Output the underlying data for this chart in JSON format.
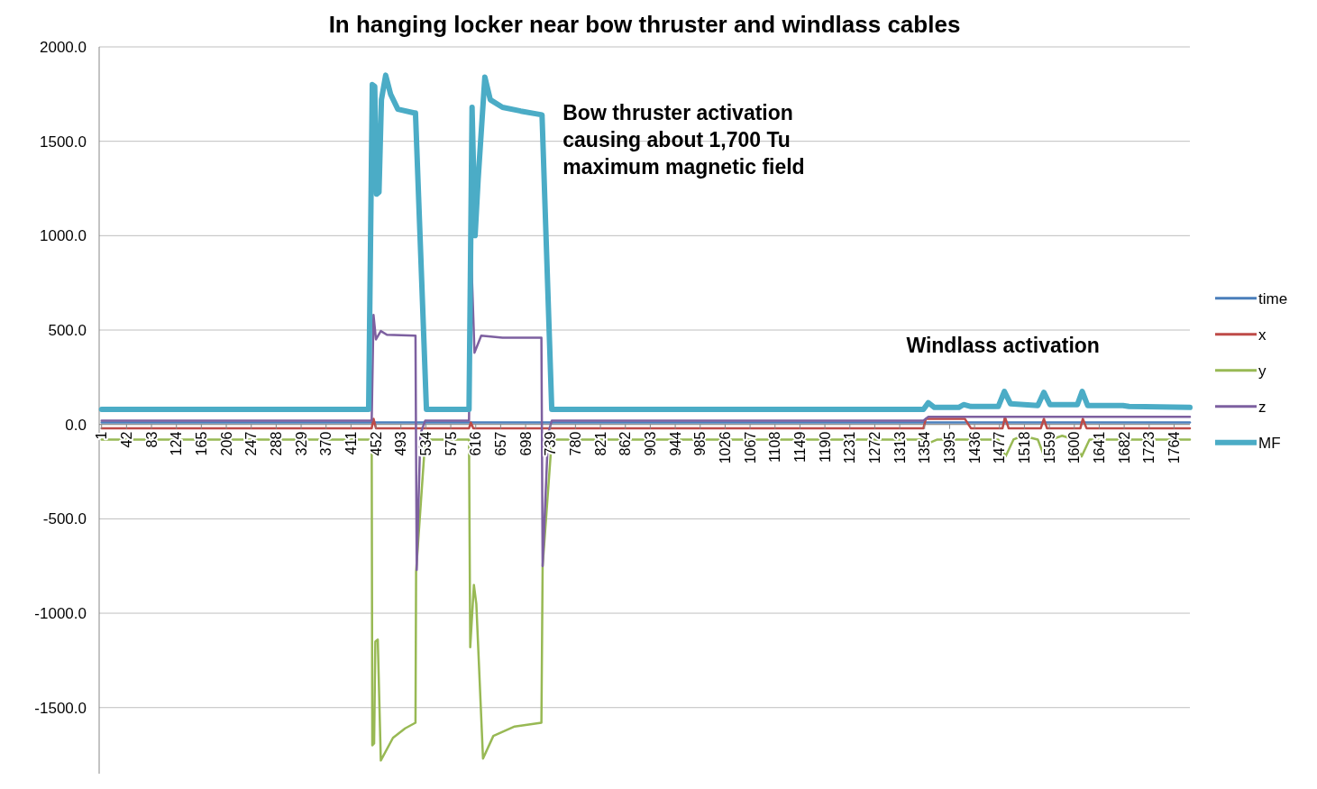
{
  "chart_data": {
    "type": "line",
    "title": "In hanging locker near bow thruster and windlass cables",
    "xlim": [
      -3,
      1790
    ],
    "ylim": [
      -1850,
      2000
    ],
    "xticks": [
      1,
      42,
      83,
      124,
      165,
      206,
      247,
      288,
      329,
      370,
      411,
      452,
      493,
      534,
      575,
      616,
      657,
      698,
      739,
      780,
      821,
      862,
      903,
      944,
      985,
      1026,
      1067,
      1108,
      1149,
      1190,
      1231,
      1272,
      1313,
      1354,
      1395,
      1436,
      1477,
      1518,
      1559,
      1600,
      1641,
      1682,
      1723,
      1764
    ],
    "yticks": [
      {
        "value": -1500,
        "label": "-1500.0"
      },
      {
        "value": -1000,
        "label": "-1000.0"
      },
      {
        "value": -500,
        "label": "-500.0"
      },
      {
        "value": 0,
        "label": "0.0"
      },
      {
        "value": 500,
        "label": "500.0"
      },
      {
        "value": 1000,
        "label": "1000.0"
      },
      {
        "value": 1500,
        "label": "1500.0"
      },
      {
        "value": 2000,
        "label": "2000.0"
      }
    ],
    "grid": "y",
    "legend": "right",
    "marker": "none",
    "line_style": "solid",
    "annotations": [
      "Bow thruster activation\ncausing about 1,700 Tu\nmaximum magnetic field",
      "Windlass activation"
    ],
    "series": [
      {
        "name": "time",
        "color": "#4a7ebb",
        "x": [
          1,
          1790
        ],
        "values": [
          10,
          10
        ]
      },
      {
        "name": "x",
        "color": "#be4b48",
        "x": [
          1,
          445,
          448,
          452,
          605,
          608,
          612,
          1352,
          1356,
          1420,
          1430,
          1482,
          1486,
          1492,
          1545,
          1550,
          1555,
          1610,
          1614,
          1620,
          1790
        ],
        "values": [
          -20,
          -20,
          30,
          -20,
          -20,
          10,
          -20,
          -20,
          30,
          30,
          -20,
          -20,
          40,
          -20,
          -20,
          30,
          -20,
          -20,
          30,
          -20,
          -20
        ]
      },
      {
        "name": "y",
        "color": "#98b954",
        "x": [
          1,
          445,
          446,
          449,
          451,
          455,
          460,
          480,
          500,
          517,
          518,
          533,
          605,
          607,
          613,
          617,
          628,
          645,
          680,
          724,
          726,
          741,
          1352,
          1360,
          1375,
          1475,
          1487,
          1500,
          1515,
          1540,
          1550,
          1562,
          1580,
          1600,
          1612,
          1625,
          1790
        ],
        "values": [
          -80,
          -80,
          -1700,
          -1690,
          -1150,
          -1140,
          -1780,
          -1660,
          -1610,
          -1580,
          -780,
          -80,
          -80,
          -1180,
          -850,
          -950,
          -1770,
          -1650,
          -1600,
          -1580,
          -750,
          -80,
          -80,
          -100,
          -80,
          -80,
          -170,
          -80,
          -60,
          -80,
          -165,
          -80,
          -60,
          -80,
          -170,
          -80,
          -80
        ]
      },
      {
        "name": "z",
        "color": "#7d60a0",
        "x": [
          1,
          445,
          448,
          452,
          460,
          470,
          517,
          519,
          525,
          533,
          605,
          608,
          614,
          625,
          660,
          724,
          726,
          735,
          741,
          1352,
          1360,
          1790
        ],
        "values": [
          20,
          20,
          580,
          450,
          495,
          475,
          470,
          -770,
          -50,
          20,
          20,
          950,
          380,
          470,
          460,
          460,
          -750,
          -50,
          20,
          20,
          40,
          40
        ]
      },
      {
        "name": "MF",
        "color": "#4bacc6",
        "x": [
          1,
          440,
          446,
          450,
          453,
          457,
          461,
          468,
          476,
          488,
          515,
          517,
          535,
          605,
          610,
          615,
          620,
          631,
          640,
          660,
          690,
          725,
          741,
          1352,
          1360,
          1370,
          1410,
          1418,
          1430,
          1475,
          1485,
          1495,
          1540,
          1550,
          1560,
          1605,
          1613,
          1622,
          1680,
          1690,
          1790
        ],
        "values": [
          80,
          80,
          1800,
          1790,
          1220,
          1230,
          1720,
          1850,
          1750,
          1670,
          1650,
          1650,
          80,
          80,
          1680,
          1000,
          1300,
          1840,
          1720,
          1680,
          1660,
          1640,
          80,
          80,
          115,
          90,
          90,
          105,
          95,
          95,
          175,
          110,
          100,
          170,
          105,
          105,
          175,
          100,
          100,
          95,
          90
        ]
      }
    ]
  }
}
